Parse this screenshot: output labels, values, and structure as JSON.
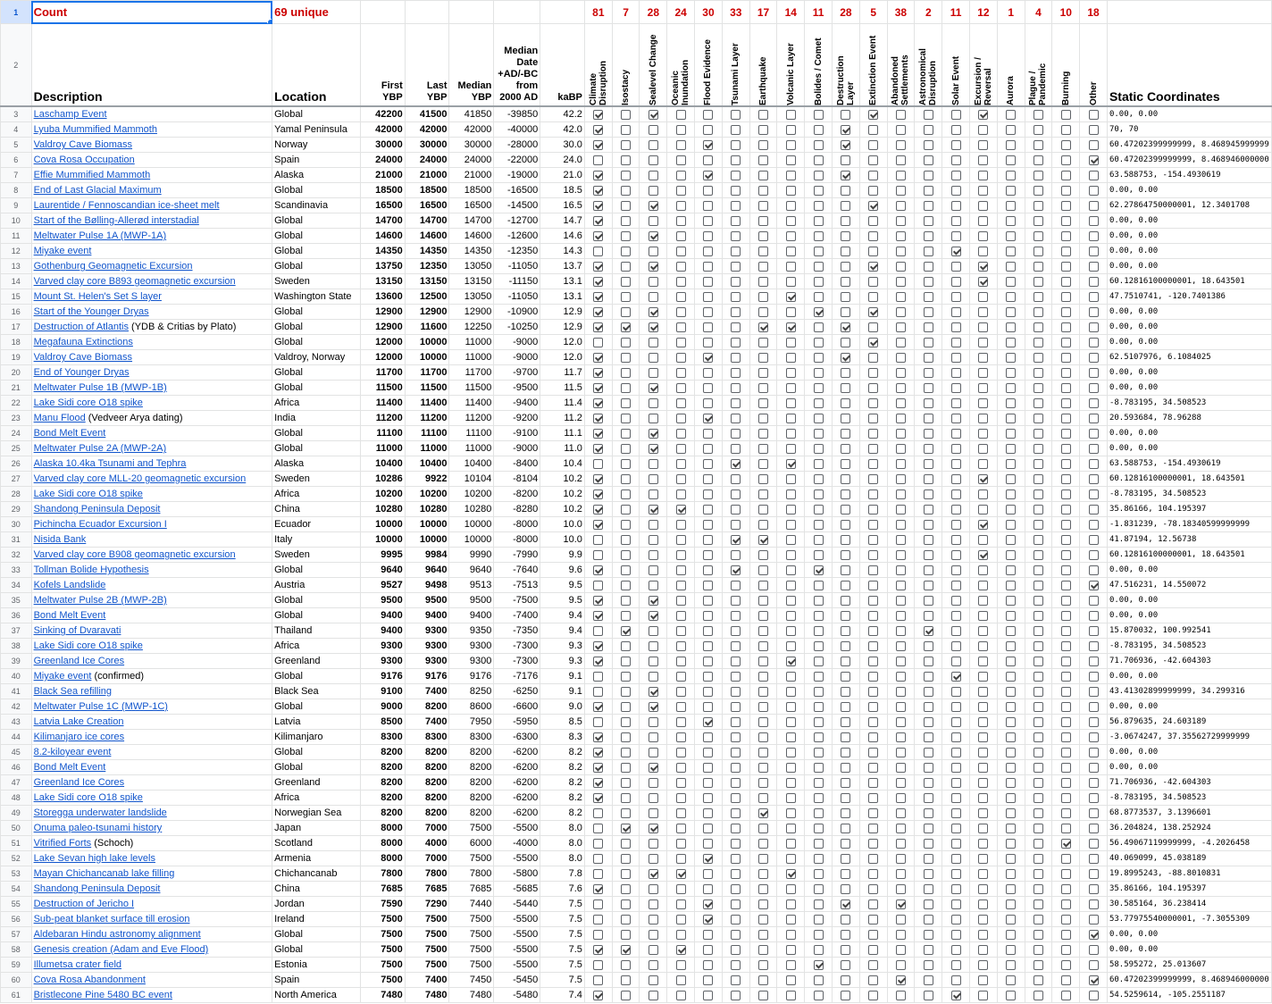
{
  "header": {
    "row1_label": "Count",
    "unique": "69 unique",
    "description": "Description",
    "location": "Location",
    "first": "First YBP",
    "last": "Last YBP",
    "median": "Median YBP",
    "median_date": "Median Date +AD/-BC from 2000 AD",
    "kabp": "kaBP",
    "static": "Static Coordinates"
  },
  "categories": [
    {
      "count": "81",
      "label": "Climate\nDisruption"
    },
    {
      "count": "7",
      "label": "Isostacy"
    },
    {
      "count": "28",
      "label": "Sealevel Change"
    },
    {
      "count": "24",
      "label": "Oceanic\nInundation"
    },
    {
      "count": "30",
      "label": "Flood Evidence"
    },
    {
      "count": "33",
      "label": "Tsunami Layer"
    },
    {
      "count": "17",
      "label": "Earthquake"
    },
    {
      "count": "14",
      "label": "Volcanic Layer"
    },
    {
      "count": "11",
      "label": "Bolides / Comet"
    },
    {
      "count": "28",
      "label": "Destruction\nLayer"
    },
    {
      "count": "5",
      "label": "Extinction Event"
    },
    {
      "count": "38",
      "label": "Abandoned\nSettlements"
    },
    {
      "count": "2",
      "label": "Astronomical\nDisruption"
    },
    {
      "count": "11",
      "label": "Solar Event"
    },
    {
      "count": "12",
      "label": "Excursion /\nReversal"
    },
    {
      "count": "1",
      "label": "Aurora"
    },
    {
      "count": "4",
      "label": "Plague /\nPandemic"
    },
    {
      "count": "10",
      "label": "Burning"
    },
    {
      "count": "18",
      "label": "Other"
    }
  ],
  "rows": [
    {
      "n": "3",
      "d": "Laschamp Event",
      "x": "",
      "loc": "Global",
      "f": "42200",
      "l": "41500",
      "m": "41850",
      "md": "-39850",
      "k": "42.2",
      "c": "1010000000100010000",
      "co": "0.00, 0.00"
    },
    {
      "n": "4",
      "d": "Lyuba Mummified Mammoth",
      "x": "",
      "loc": "Yamal Peninsula",
      "f": "42000",
      "l": "42000",
      "m": "42000",
      "md": "-40000",
      "k": "42.0",
      "c": "1000000001000000000",
      "co": "70, 70"
    },
    {
      "n": "5",
      "d": "Valdroy Cave Biomass",
      "x": "",
      "loc": "Norway",
      "f": "30000",
      "l": "30000",
      "m": "30000",
      "md": "-28000",
      "k": "30.0",
      "c": "1000100001000000000",
      "co": "60.47202399999999, 8.468945999999"
    },
    {
      "n": "6",
      "d": "Cova Rosa Occupation",
      "x": "",
      "loc": "Spain",
      "f": "24000",
      "l": "24000",
      "m": "24000",
      "md": "-22000",
      "k": "24.0",
      "c": "0000000000000000001",
      "co": "60.47202399999999, 8.468946000000"
    },
    {
      "n": "7",
      "d": "Effie Mummified Mammoth",
      "x": "",
      "loc": "Alaska",
      "f": "21000",
      "l": "21000",
      "m": "21000",
      "md": "-19000",
      "k": "21.0",
      "c": "1000100001000000000",
      "co": "63.588753, -154.4930619"
    },
    {
      "n": "8",
      "d": "End of Last Glacial Maximum",
      "x": "",
      "loc": "Global",
      "f": "18500",
      "l": "18500",
      "m": "18500",
      "md": "-16500",
      "k": "18.5",
      "c": "1000000000000000000",
      "co": "0.00, 0.00"
    },
    {
      "n": "9",
      "d": "Laurentide / Fennoscandian ice-sheet melt",
      "x": "",
      "loc": "Scandinavia",
      "f": "16500",
      "l": "16500",
      "m": "16500",
      "md": "-14500",
      "k": "16.5",
      "c": "1010000000100000000",
      "co": "62.27864750000001, 12.3401708"
    },
    {
      "n": "10",
      "d": "Start of the Bølling-Allerød interstadial",
      "x": "",
      "loc": "Global",
      "f": "14700",
      "l": "14700",
      "m": "14700",
      "md": "-12700",
      "k": "14.7",
      "c": "1000000000000000000",
      "co": "0.00, 0.00"
    },
    {
      "n": "11",
      "d": "Meltwater Pulse 1A (MWP-1A)",
      "x": "",
      "loc": "Global",
      "f": "14600",
      "l": "14600",
      "m": "14600",
      "md": "-12600",
      "k": "14.6",
      "c": "1010000000000000000",
      "co": "0.00, 0.00"
    },
    {
      "n": "12",
      "d": "Miyake event",
      "x": "",
      "loc": "Global",
      "f": "14350",
      "l": "14350",
      "m": "14350",
      "md": "-12350",
      "k": "14.3",
      "c": "0000000000000100000",
      "co": "0.00, 0.00"
    },
    {
      "n": "13",
      "d": "Gothenburg Geomagnetic Excursion",
      "x": "",
      "loc": "Global",
      "f": "13750",
      "l": "12350",
      "m": "13050",
      "md": "-11050",
      "k": "13.7",
      "c": "1010000000100010000",
      "co": "0.00, 0.00"
    },
    {
      "n": "14",
      "d": "Varved clay core B893 geomagnetic excursion",
      "x": "",
      "loc": "Sweden",
      "f": "13150",
      "l": "13150",
      "m": "13150",
      "md": "-11150",
      "k": "13.1",
      "c": "1000000000000010000",
      "co": "60.12816100000001, 18.643501"
    },
    {
      "n": "15",
      "d": "Mount St. Helen's Set S layer",
      "x": "",
      "loc": "Washington State",
      "f": "13600",
      "l": "12500",
      "m": "13050",
      "md": "-11050",
      "k": "13.1",
      "c": "1000000100000000000",
      "co": "47.7510741, -120.7401386"
    },
    {
      "n": "16",
      "d": "Start of the Younger Dryas",
      "x": "",
      "loc": "Global",
      "f": "12900",
      "l": "12900",
      "m": "12900",
      "md": "-10900",
      "k": "12.9",
      "c": "1010000010100000000",
      "co": "0.00, 0.00"
    },
    {
      "n": "17",
      "d": "Destruction of Atlantis",
      "x": " (YDB & Critias by Plato)",
      "loc": "Global",
      "f": "12900",
      "l": "11600",
      "m": "12250",
      "md": "-10250",
      "k": "12.9",
      "c": "1110001101000000000",
      "co": "0.00, 0.00"
    },
    {
      "n": "18",
      "d": "Megafauna Extinctions",
      "x": "",
      "loc": "Global",
      "f": "12000",
      "l": "10000",
      "m": "11000",
      "md": "-9000",
      "k": "12.0",
      "c": "0000000000100000000",
      "co": "0.00, 0.00"
    },
    {
      "n": "19",
      "d": "Valdroy Cave Biomass",
      "x": "",
      "loc": "Valdroy, Norway",
      "f": "12000",
      "l": "10000",
      "m": "11000",
      "md": "-9000",
      "k": "12.0",
      "c": "1000100001000000000",
      "co": "62.5107976, 6.1084025"
    },
    {
      "n": "20",
      "d": "End of Younger Dryas",
      "x": "",
      "loc": "Global",
      "f": "11700",
      "l": "11700",
      "m": "11700",
      "md": "-9700",
      "k": "11.7",
      "c": "1000000000000000000",
      "co": "0.00, 0.00"
    },
    {
      "n": "21",
      "d": "Meltwater Pulse 1B (MWP-1B)",
      "x": "",
      "loc": "Global",
      "f": "11500",
      "l": "11500",
      "m": "11500",
      "md": "-9500",
      "k": "11.5",
      "c": "1010000000000000000",
      "co": "0.00, 0.00"
    },
    {
      "n": "22",
      "d": "Lake Sidi core O18 spike",
      "x": "",
      "loc": "Africa",
      "f": "11400",
      "l": "11400",
      "m": "11400",
      "md": "-9400",
      "k": "11.4",
      "c": "1000000000000000000",
      "co": "-8.783195, 34.508523"
    },
    {
      "n": "23",
      "d": "Manu Flood",
      "x": " (Vedveer Arya dating)",
      "loc": "India",
      "f": "11200",
      "l": "11200",
      "m": "11200",
      "md": "-9200",
      "k": "11.2",
      "c": "1000100000000000000",
      "co": "20.593684, 78.96288"
    },
    {
      "n": "24",
      "d": "Bond Melt Event",
      "x": "",
      "loc": "Global",
      "f": "11100",
      "l": "11100",
      "m": "11100",
      "md": "-9100",
      "k": "11.1",
      "c": "1010000000000000000",
      "co": "0.00, 0.00"
    },
    {
      "n": "25",
      "d": "Meltwater Pulse 2A (MWP-2A)",
      "x": "",
      "loc": "Global",
      "f": "11000",
      "l": "11000",
      "m": "11000",
      "md": "-9000",
      "k": "11.0",
      "c": "1010000000000000000",
      "co": "0.00, 0.00"
    },
    {
      "n": "26",
      "d": "Alaska 10.4ka Tsunami and Tephra",
      "x": "",
      "loc": "Alaska",
      "f": "10400",
      "l": "10400",
      "m": "10400",
      "md": "-8400",
      "k": "10.4",
      "c": "0000010100000000000",
      "co": "63.588753, -154.4930619"
    },
    {
      "n": "27",
      "d": "Varved clay core MLL-20 geomagnetic excursion",
      "x": "",
      "loc": "Sweden",
      "f": "10286",
      "l": "9922",
      "m": "10104",
      "md": "-8104",
      "k": "10.2",
      "c": "1000000000000010000",
      "co": "60.12816100000001, 18.643501"
    },
    {
      "n": "28",
      "d": "Lake Sidi core O18 spike",
      "x": "",
      "loc": "Africa",
      "f": "10200",
      "l": "10200",
      "m": "10200",
      "md": "-8200",
      "k": "10.2",
      "c": "1000000000000000000",
      "co": "-8.783195, 34.508523"
    },
    {
      "n": "29",
      "d": "Shandong Peninsula Deposit",
      "x": "",
      "loc": "China",
      "f": "10280",
      "l": "10280",
      "m": "10280",
      "md": "-8280",
      "k": "10.2",
      "c": "1011000000000000000",
      "co": "35.86166, 104.195397"
    },
    {
      "n": "30",
      "d": "Pichincha Ecuador Excursion I",
      "x": "",
      "loc": "Ecuador",
      "f": "10000",
      "l": "10000",
      "m": "10000",
      "md": "-8000",
      "k": "10.0",
      "c": "1000000000000010000",
      "co": "-1.831239, -78.18340599999999"
    },
    {
      "n": "31",
      "d": "Nisida Bank",
      "x": "",
      "loc": "Italy",
      "f": "10000",
      "l": "10000",
      "m": "10000",
      "md": "-8000",
      "k": "10.0",
      "c": "0000011000000000000",
      "co": "41.87194, 12.56738"
    },
    {
      "n": "32",
      "d": "Varved clay core B908 geomagnetic excursion",
      "x": "",
      "loc": "Sweden",
      "f": "9995",
      "l": "9984",
      "m": "9990",
      "md": "-7990",
      "k": "9.9",
      "c": "0000000000000010000",
      "co": "60.12816100000001, 18.643501"
    },
    {
      "n": "33",
      "d": "Tollman Bolide Hypothesis",
      "x": "",
      "loc": "Global",
      "f": "9640",
      "l": "9640",
      "m": "9640",
      "md": "-7640",
      "k": "9.6",
      "c": "1000010010000000000",
      "co": "0.00, 0.00"
    },
    {
      "n": "34",
      "d": "Kofels Landslide",
      "x": "",
      "loc": "Austria",
      "f": "9527",
      "l": "9498",
      "m": "9513",
      "md": "-7513",
      "k": "9.5",
      "c": "0000000000000000001",
      "co": "47.516231, 14.550072"
    },
    {
      "n": "35",
      "d": "Meltwater Pulse 2B (MWP-2B)",
      "x": "",
      "loc": "Global",
      "f": "9500",
      "l": "9500",
      "m": "9500",
      "md": "-7500",
      "k": "9.5",
      "c": "1010000000000000000",
      "co": "0.00, 0.00"
    },
    {
      "n": "36",
      "d": "Bond Melt Event",
      "x": "",
      "loc": "Global",
      "f": "9400",
      "l": "9400",
      "m": "9400",
      "md": "-7400",
      "k": "9.4",
      "c": "1010000000000000000",
      "co": "0.00, 0.00"
    },
    {
      "n": "37",
      "d": "Sinking of Dvaravati",
      "x": "",
      "loc": "Thailand",
      "f": "9400",
      "l": "9300",
      "m": "9350",
      "md": "-7350",
      "k": "9.4",
      "c": "0100000000001000000",
      "co": "15.870032, 100.992541"
    },
    {
      "n": "38",
      "d": "Lake Sidi core O18 spike",
      "x": "",
      "loc": "Africa",
      "f": "9300",
      "l": "9300",
      "m": "9300",
      "md": "-7300",
      "k": "9.3",
      "c": "1000000000000000000",
      "co": "-8.783195, 34.508523"
    },
    {
      "n": "39",
      "d": "Greenland Ice Cores",
      "x": "",
      "loc": "Greenland",
      "f": "9300",
      "l": "9300",
      "m": "9300",
      "md": "-7300",
      "k": "9.3",
      "c": "1000000100000000000",
      "co": "71.706936, -42.604303"
    },
    {
      "n": "40",
      "d": "Miyake event",
      "x": " (confirmed)",
      "loc": "Global",
      "f": "9176",
      "l": "9176",
      "m": "9176",
      "md": "-7176",
      "k": "9.1",
      "c": "0000000000000100000",
      "co": "0.00, 0.00"
    },
    {
      "n": "41",
      "d": "Black Sea refilling",
      "x": "",
      "loc": "Black Sea",
      "f": "9100",
      "l": "7400",
      "m": "8250",
      "md": "-6250",
      "k": "9.1",
      "c": "0010000000000000000",
      "co": "43.41302899999999, 34.299316"
    },
    {
      "n": "42",
      "d": "Meltwater Pulse 1C (MWP-1C)",
      "x": "",
      "loc": "Global",
      "f": "9000",
      "l": "8200",
      "m": "8600",
      "md": "-6600",
      "k": "9.0",
      "c": "1010000000000000000",
      "co": "0.00, 0.00"
    },
    {
      "n": "43",
      "d": "Latvia Lake Creation",
      "x": "",
      "loc": "Latvia",
      "f": "8500",
      "l": "7400",
      "m": "7950",
      "md": "-5950",
      "k": "8.5",
      "c": "0000100000000000000",
      "co": "56.879635, 24.603189"
    },
    {
      "n": "44",
      "d": "Kilimanjaro ice cores",
      "x": "",
      "loc": "Kilimanjaro",
      "f": "8300",
      "l": "8300",
      "m": "8300",
      "md": "-6300",
      "k": "8.3",
      "c": "1000000000000000000",
      "co": "-3.0674247, 37.35562729999999"
    },
    {
      "n": "45",
      "d": "8.2-kiloyear event",
      "x": "",
      "loc": "Global",
      "f": "8200",
      "l": "8200",
      "m": "8200",
      "md": "-6200",
      "k": "8.2",
      "c": "1000000000000000000",
      "co": "0.00, 0.00"
    },
    {
      "n": "46",
      "d": "Bond Melt Event",
      "x": "",
      "loc": "Global",
      "f": "8200",
      "l": "8200",
      "m": "8200",
      "md": "-6200",
      "k": "8.2",
      "c": "1010000000000000000",
      "co": "0.00, 0.00"
    },
    {
      "n": "47",
      "d": "Greenland Ice Cores",
      "x": "",
      "loc": "Greenland",
      "f": "8200",
      "l": "8200",
      "m": "8200",
      "md": "-6200",
      "k": "8.2",
      "c": "1000000000000000000",
      "co": "71.706936, -42.604303"
    },
    {
      "n": "48",
      "d": "Lake Sidi core O18 spike",
      "x": "",
      "loc": "Africa",
      "f": "8200",
      "l": "8200",
      "m": "8200",
      "md": "-6200",
      "k": "8.2",
      "c": "1000000000000000000",
      "co": "-8.783195, 34.508523"
    },
    {
      "n": "49",
      "d": "Storegga underwater landslide",
      "x": "",
      "loc": "Norwegian Sea",
      "f": "8200",
      "l": "8200",
      "m": "8200",
      "md": "-6200",
      "k": "8.2",
      "c": "0000001000000000000",
      "co": "68.8773537, 3.1396601"
    },
    {
      "n": "50",
      "d": "Onuma paleo-tsunami history",
      "x": "",
      "loc": "Japan",
      "f": "8000",
      "l": "7000",
      "m": "7500",
      "md": "-5500",
      "k": "8.0",
      "c": "0110000000000000000",
      "co": "36.204824, 138.252924"
    },
    {
      "n": "51",
      "d": "Vitrified Forts",
      "x": " (Schoch)",
      "loc": "Scotland",
      "f": "8000",
      "l": "4000",
      "m": "6000",
      "md": "-4000",
      "k": "8.0",
      "c": "0000000000000000010",
      "co": "56.49067119999999, -4.2026458"
    },
    {
      "n": "52",
      "d": "Lake Sevan high lake levels",
      "x": "",
      "loc": "Armenia",
      "f": "8000",
      "l": "7000",
      "m": "7500",
      "md": "-5500",
      "k": "8.0",
      "c": "0000100000000000000",
      "co": "40.069099, 45.038189"
    },
    {
      "n": "53",
      "d": "Mayan Chichancanab lake filling",
      "x": "",
      "loc": "Chichancanab",
      "f": "7800",
      "l": "7800",
      "m": "7800",
      "md": "-5800",
      "k": "7.8",
      "c": "0011000100000000000",
      "co": "19.8995243, -88.8010831"
    },
    {
      "n": "54",
      "d": "Shandong Peninsula Deposit",
      "x": "",
      "loc": "China",
      "f": "7685",
      "l": "7685",
      "m": "7685",
      "md": "-5685",
      "k": "7.6",
      "c": "1000000000000000000",
      "co": "35.86166, 104.195397"
    },
    {
      "n": "55",
      "d": "Destruction of Jericho I",
      "x": "",
      "loc": "Jordan",
      "f": "7590",
      "l": "7290",
      "m": "7440",
      "md": "-5440",
      "k": "7.5",
      "c": "0000100001010000000",
      "co": "30.585164, 36.238414"
    },
    {
      "n": "56",
      "d": "Sub-peat blanket surface till erosion",
      "x": "",
      "loc": "Ireland",
      "f": "7500",
      "l": "7500",
      "m": "7500",
      "md": "-5500",
      "k": "7.5",
      "c": "0000100000000000000",
      "co": "53.77975540000001, -7.3055309"
    },
    {
      "n": "57",
      "d": "Aldebaran Hindu astronomy alignment",
      "x": "",
      "loc": "Global",
      "f": "7500",
      "l": "7500",
      "m": "7500",
      "md": "-5500",
      "k": "7.5",
      "c": "0000000000000000001",
      "co": "0.00, 0.00"
    },
    {
      "n": "58",
      "d": "Genesis creation (Adam and Eve Flood)",
      "x": "",
      "loc": "Global",
      "f": "7500",
      "l": "7500",
      "m": "7500",
      "md": "-5500",
      "k": "7.5",
      "c": "1101000000000000000",
      "co": "0.00, 0.00"
    },
    {
      "n": "59",
      "d": "Illumetsa crater field",
      "x": "",
      "loc": "Estonia",
      "f": "7500",
      "l": "7500",
      "m": "7500",
      "md": "-5500",
      "k": "7.5",
      "c": "0000000010000000000",
      "co": "58.595272, 25.013607"
    },
    {
      "n": "60",
      "d": "Cova Rosa Abandonment",
      "x": "",
      "loc": "Spain",
      "f": "7500",
      "l": "7400",
      "m": "7450",
      "md": "-5450",
      "k": "7.5",
      "c": "0000000000010000001",
      "co": "60.47202399999999, 8.468946000000"
    },
    {
      "n": "61",
      "d": "Bristlecone Pine 5480 BC event",
      "x": "",
      "loc": "North America",
      "f": "7480",
      "l": "7480",
      "m": "7480",
      "md": "-5480",
      "k": "7.4",
      "c": "1000000000000100000",
      "co": "54.5259614, -105.2551187"
    }
  ]
}
